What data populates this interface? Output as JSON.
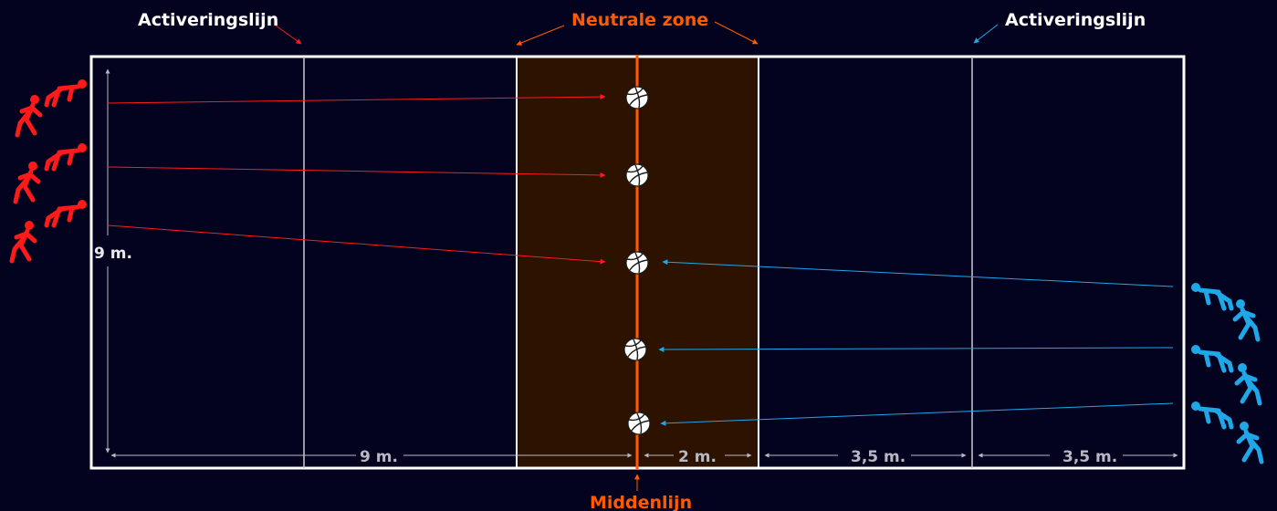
{
  "labels": {
    "activation_left": "Activeringslijn",
    "activation_right": "Activeringslijn",
    "neutral_zone": "Neutrale zone",
    "center_line": "Middenlijn"
  },
  "dimensions": {
    "width": "9 m.",
    "left_half": "9 m.",
    "neutral_half": "2 m.",
    "zone_a": "3,5 m.",
    "zone_b": "3,5 m."
  },
  "colors": {
    "background": "#03031f",
    "court_line": "#ffffff",
    "inner_line": "#c9c9d6",
    "neutral_zone_fill": "#2d1200",
    "accent_orange": "#ff5a00",
    "team_red": "#ff1a1a",
    "team_blue": "#1fa8e8",
    "dimension_gray": "#b8b8c4"
  },
  "icons": {
    "ball": "volleyball-icon",
    "runner": "running-player-icon",
    "crouch": "crouching-player-icon"
  }
}
